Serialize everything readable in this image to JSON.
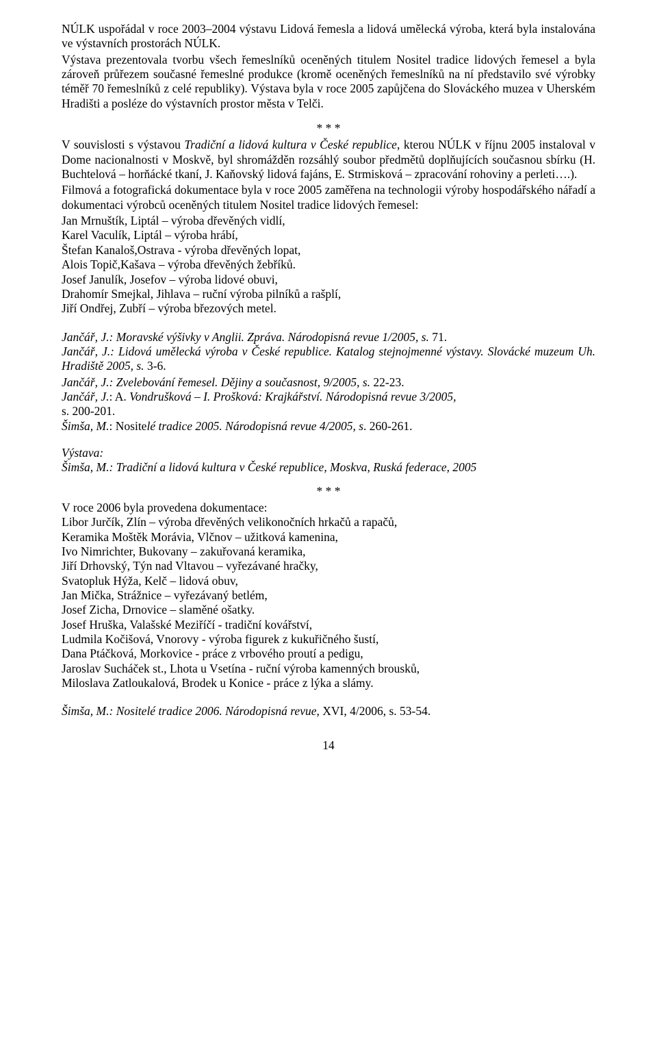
{
  "p1": "NÚLK uspořádal v roce 2003–2004 výstavu Lidová řemesla a lidová umělecká výroba, která byla instalována ve výstavních prostorách NÚLK.",
  "p2": "Výstava prezentovala tvorbu všech řemeslníků oceněných titulem Nositel tradice lidových řemesel a byla zároveň průřezem současné řemeslné produkce (kromě oceněných řemeslníků na ní představilo své výrobky téměř 70 řemeslníků z celé republiky). Výstava byla v roce 2005 zapůjčena do Slováckého muzea v Uherském Hradišti a posléze do výstavních prostor města v Telči.",
  "stars": "* * *",
  "p3a": "V souvislosti s výstavou ",
  "p3b": "Tradiční a lidová kultura v České republice",
  "p3c": ", kterou NÚLK v říjnu 2005 instaloval v Dome nacionalnosti v Moskvě, byl shromážděn rozsáhlý soubor předmětů doplňujících současnou sbírku (H. Buchtelová – horňácké tkaní, J. Kaňovský lidová fajáns, E. Strmisková – zpracování rohoviny a perleti….).",
  "p4": "Filmová a fotografická dokumentace byla v roce 2005 zaměřena na technologii výroby hospodářského nářadí a dokumentaci výrobců oceněných titulem Nositel tradice lidových řemesel:",
  "list1": [
    "Jan  Mrnuštík, Liptál – výroba dřevěných vidlí,",
    "Karel Vaculík, Liptál – výroba hrábí,",
    "Štefan Kanaloš,Ostrava -  výroba dřevěných lopat,",
    "Alois Topič,Kašava – výroba dřevěných žebříků.",
    "Josef Janulík, Josefov – výroba lidové obuvi,",
    "Drahomír Smejkal, Jihlava – ruční výroba pilníků a rašplí,",
    "Jiří Ondřej, Zubří – výroba březových metel."
  ],
  "ref1a": "Jančář, J.: Moravské výšivky v Anglii. Zpráva. Národopisná revue 1/2005, s. ",
  "ref1b": "71.",
  "ref2": "Jančář, J.: Lidová umělecká výroba v České republice. Katalog stejnojmenné výstavy. Slovácké muzeum Uh. Hradiště 2005, s. ",
  "ref2b": "3-6.",
  "ref3": "Jančář, J.: Zvelebování řemesel. Dějiny a současnost, 9/2005, s. ",
  "ref3b": "22-23.",
  "ref4": "Jančář, J.",
  "ref4b": ": A. ",
  "ref4c": "Vondrušková – I. Prošková: Krajkářství. Národopisná revue 3/2005,",
  "ref4d": "s. 200-201.",
  "ref5a": "Šimša, M.",
  "ref5b": ": Nosite",
  "ref5c": "lé tradice 2005. Národopisná revue 4/2005, s",
  "ref5d": ". 260-261.",
  "vystava_label": "Výstava:",
  "vystava_text": "Šimša, M.: Tradiční a lidová kultura v České republice, Moskva, Ruská federace, 2005",
  "p5": "V roce 2006 byla provedena dokumentace:",
  "list2": [
    "Libor Jurčík, Zlín – výroba dřevěných velikonočních hrkačů a rapačů,",
    "Keramika Moštěk Morávia, Vlčnov – užitková kamenina,",
    "Ivo Nimrichter, Bukovany – zakuřovaná keramika,",
    "Jiří Drhovský, Týn nad Vltavou – vyřezávané hračky,",
    "Svatopluk Hýža, Kelč – lidová obuv,",
    "Jan Mička, Strážnice – vyřezávaný betlém,",
    "Josef Zicha, Drnovice – slaměné ošatky.",
    "Josef Hruška, Valašské Meziříčí - tradiční  kovářství,",
    "Ludmila Kočišová, Vnorovy - výroba figurek z kukuřičného šustí,",
    "Dana Ptáčková, Morkovice - práce z vrbového proutí a pedigu,",
    "Jaroslav Sucháček st., Lhota u Vsetína - ruční výroba kamenných brousků,",
    "Miloslava Zatloukalová, Brodek u Konice - práce z lýka a slámy."
  ],
  "ref6a": "Šimša, M.: Nositelé tradice 2006. Národopisná revue,",
  "ref6b": " XVI, 4/2006, s. 53-54.",
  "pagenum": "14"
}
